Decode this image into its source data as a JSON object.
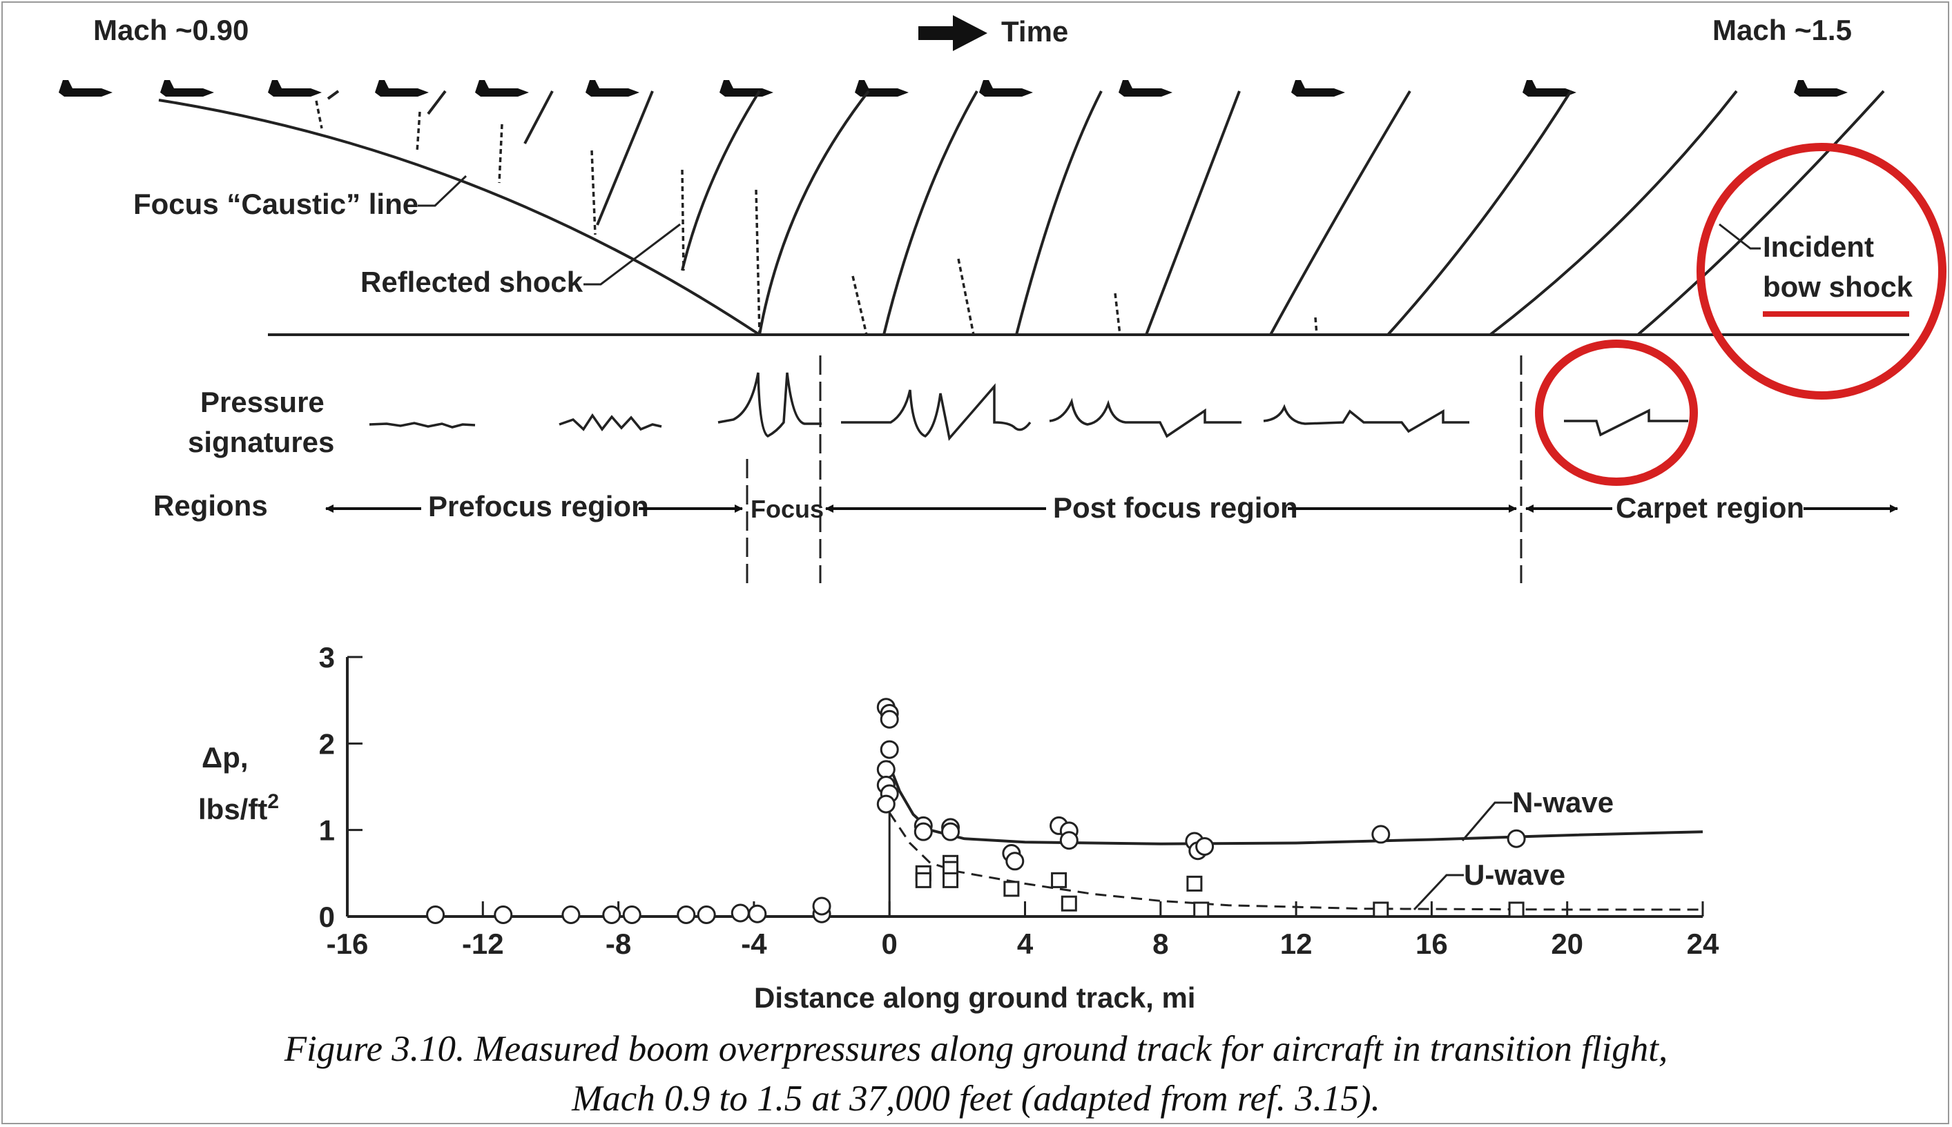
{
  "header": {
    "mach_left": "Mach ~0.90",
    "time_label": "Time",
    "mach_right": "Mach ~1.5"
  },
  "diagram": {
    "caustic_label": "Focus “Caustic” line",
    "reflected_label": "Reflected shock",
    "incident_label_1": "Incident",
    "incident_label_2": "bow shock",
    "pressure_label_1": "Pressure",
    "pressure_label_2": "signatures",
    "regions_label": "Regions",
    "region_prefocus": "Prefocus region",
    "region_focus": "Focus",
    "region_postfocus": "Post focus region",
    "region_carpet": "Carpet region"
  },
  "annotations": {
    "highlight_color": "#d62020"
  },
  "chart_data": {
    "type": "scatter",
    "xlabel": "Distance along ground track, mi",
    "ylabel_1": "Δp,",
    "ylabel_2": "lbs/ft",
    "ylabel_sup": "2",
    "xlim": [
      -16,
      24
    ],
    "ylim": [
      0,
      3
    ],
    "x_ticks": [
      "-16",
      "-12",
      "-8",
      "-4",
      "0",
      "4",
      "8",
      "12",
      "16",
      "20",
      "24"
    ],
    "y_ticks": [
      "0",
      "1",
      "2",
      "3"
    ],
    "series": [
      {
        "name": "N-wave",
        "marker": "circle",
        "points": [
          [
            -13.4,
            0.02
          ],
          [
            -11.4,
            0.02
          ],
          [
            -9.4,
            0.02
          ],
          [
            -8.2,
            0.02
          ],
          [
            -7.6,
            0.02
          ],
          [
            -6.0,
            0.02
          ],
          [
            -5.4,
            0.02
          ],
          [
            -4.4,
            0.04
          ],
          [
            -3.9,
            0.03
          ],
          [
            -2.0,
            0.03
          ],
          [
            -2.0,
            0.12
          ],
          [
            -0.1,
            2.42
          ],
          [
            0.0,
            2.35
          ],
          [
            0.0,
            2.28
          ],
          [
            0.0,
            1.93
          ],
          [
            -0.1,
            1.7
          ],
          [
            -0.1,
            1.52
          ],
          [
            0.0,
            1.42
          ],
          [
            -0.1,
            1.3
          ],
          [
            1.0,
            1.05
          ],
          [
            1.0,
            0.98
          ],
          [
            1.8,
            1.03
          ],
          [
            1.8,
            0.98
          ],
          [
            3.6,
            0.73
          ],
          [
            3.7,
            0.64
          ],
          [
            5.0,
            1.05
          ],
          [
            5.3,
            0.99
          ],
          [
            5.3,
            0.88
          ],
          [
            9.0,
            0.87
          ],
          [
            9.1,
            0.76
          ],
          [
            9.3,
            0.81
          ],
          [
            14.5,
            0.95
          ],
          [
            18.5,
            0.9
          ]
        ],
        "curve": [
          [
            0,
            1.75
          ],
          [
            0.3,
            1.45
          ],
          [
            0.7,
            1.18
          ],
          [
            1.2,
            1.0
          ],
          [
            2.2,
            0.9
          ],
          [
            4,
            0.86
          ],
          [
            8,
            0.84
          ],
          [
            12,
            0.85
          ],
          [
            16,
            0.89
          ],
          [
            20,
            0.94
          ],
          [
            24,
            0.98
          ]
        ]
      },
      {
        "name": "U-wave",
        "marker": "square",
        "points": [
          [
            1.0,
            0.5
          ],
          [
            1.0,
            0.42
          ],
          [
            1.8,
            0.62
          ],
          [
            1.8,
            0.55
          ],
          [
            1.8,
            0.42
          ],
          [
            3.6,
            0.32
          ],
          [
            5.0,
            0.42
          ],
          [
            5.3,
            0.15
          ],
          [
            9.0,
            0.38
          ],
          [
            9.2,
            0.08
          ],
          [
            14.5,
            0.08
          ],
          [
            18.5,
            0.08
          ]
        ],
        "curve": [
          [
            0,
            1.2
          ],
          [
            0.6,
            0.85
          ],
          [
            1.2,
            0.62
          ],
          [
            2,
            0.52
          ],
          [
            4,
            0.38
          ],
          [
            6,
            0.26
          ],
          [
            8,
            0.18
          ],
          [
            10,
            0.13
          ],
          [
            14,
            0.09
          ],
          [
            20,
            0.08
          ],
          [
            24,
            0.08
          ]
        ]
      }
    ]
  },
  "caption": {
    "line1": "Figure 3.10.  Measured boom overpressures along ground track for aircraft in transition flight,",
    "line2": "Mach 0.9 to 1.5 at 37,000 feet (adapted from ref. 3.15)."
  }
}
